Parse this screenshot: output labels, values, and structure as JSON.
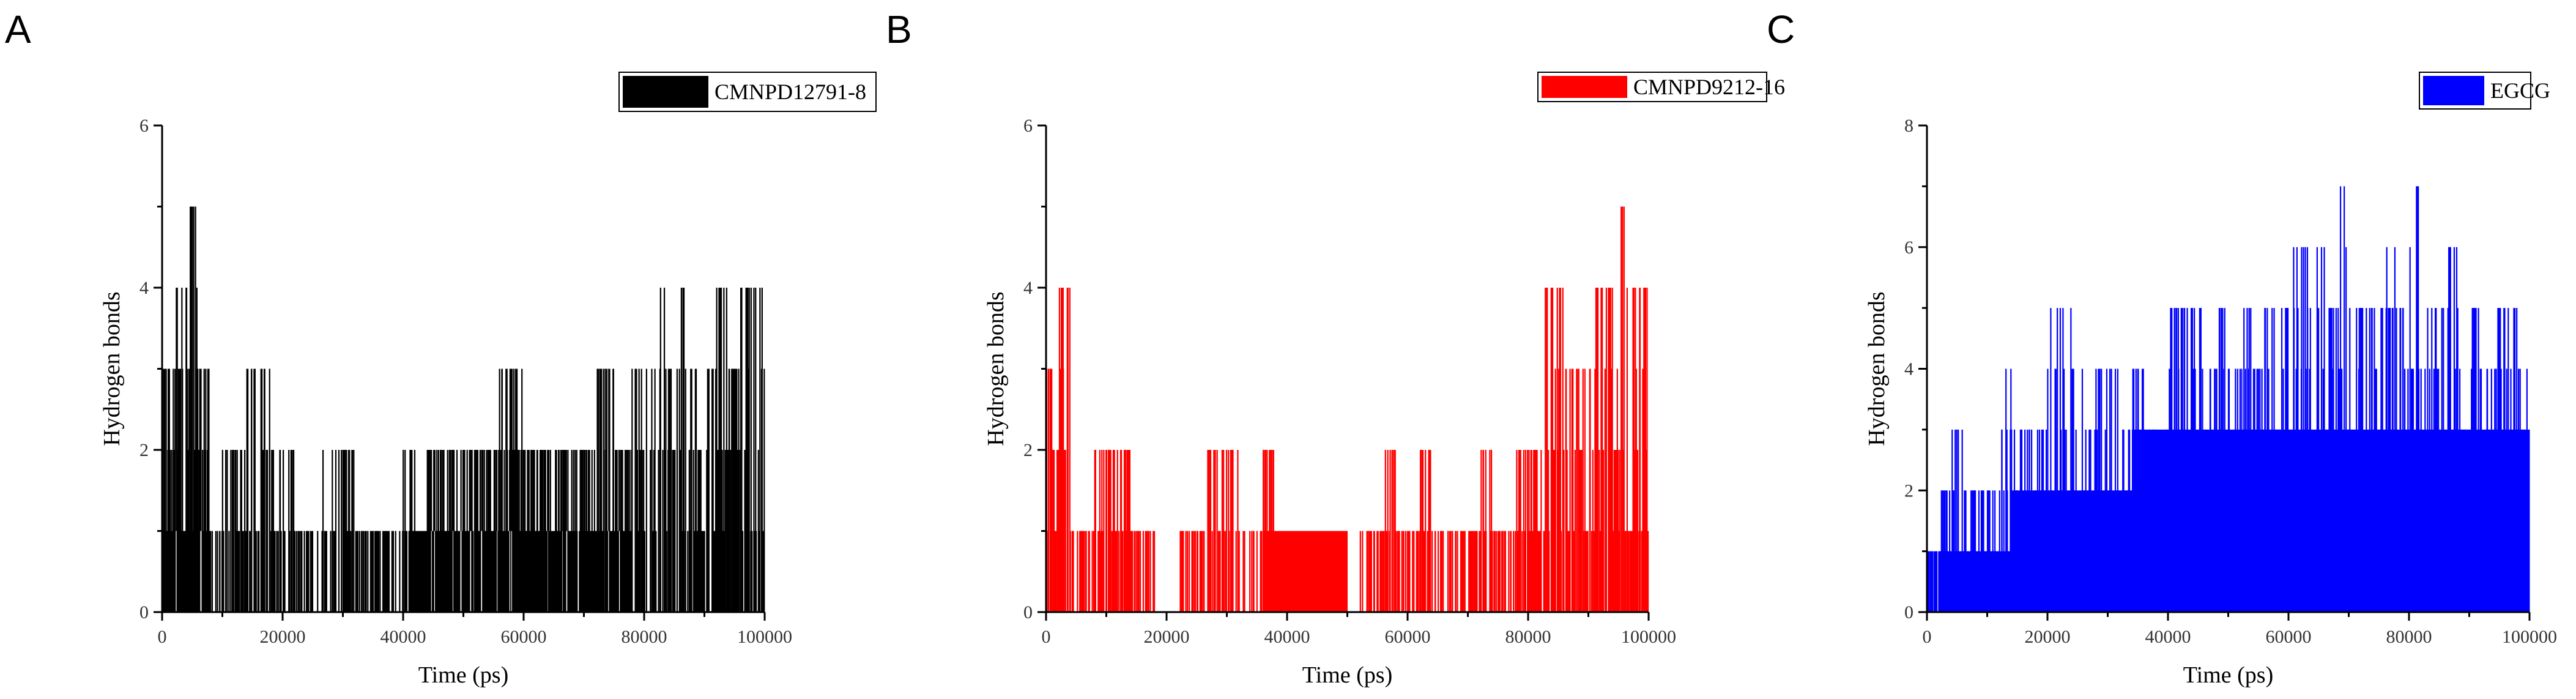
{
  "chart_data": [
    {
      "panel_label": "A",
      "type": "line",
      "title": "",
      "xlabel": "Time (ps)",
      "ylabel": "Hydrogen bonds",
      "xlim": [
        0,
        100000
      ],
      "ylim": [
        0,
        6
      ],
      "xticks": [
        "0",
        "20000",
        "40000",
        "60000",
        "80000",
        "100000"
      ],
      "yticks": [
        "0",
        "2",
        "4",
        "6"
      ],
      "grid": false,
      "legend_position": "top-right",
      "series": [
        {
          "name": "CMNPD12791-8",
          "color": "#000000",
          "description_bins_ps": 2000,
          "x": [
            0,
            2000,
            4000,
            6000,
            8000,
            10000,
            12000,
            14000,
            16000,
            18000,
            20000,
            22000,
            24000,
            26000,
            28000,
            30000,
            32000,
            34000,
            36000,
            38000,
            40000,
            42000,
            44000,
            46000,
            48000,
            50000,
            52000,
            54000,
            56000,
            58000,
            60000,
            62000,
            64000,
            66000,
            68000,
            70000,
            72000,
            74000,
            76000,
            78000,
            80000,
            82000,
            84000,
            86000,
            88000,
            90000,
            92000,
            94000,
            96000,
            98000
          ],
          "y_max": [
            3,
            4,
            5,
            3,
            1,
            2,
            2,
            3,
            3,
            2,
            2,
            1,
            1,
            2,
            2,
            2,
            1,
            1,
            1,
            1,
            2,
            1,
            2,
            2,
            2,
            2,
            2,
            2,
            3,
            3,
            2,
            2,
            2,
            2,
            2,
            2,
            3,
            3,
            2,
            3,
            3,
            4,
            3,
            4,
            3,
            3,
            4,
            3,
            4,
            4
          ],
          "y_min": [
            1,
            1,
            1,
            1,
            0,
            0,
            0,
            0,
            0,
            0,
            0,
            0,
            0,
            0,
            0,
            0,
            0,
            0,
            0,
            0,
            0,
            1,
            1,
            1,
            1,
            1,
            1,
            1,
            1,
            1,
            1,
            1,
            1,
            1,
            1,
            1,
            1,
            1,
            1,
            0,
            0,
            0,
            0,
            0,
            0,
            0,
            0,
            0,
            0,
            0
          ]
        }
      ]
    },
    {
      "panel_label": "B",
      "type": "line",
      "title": "",
      "xlabel": "Time (ps)",
      "ylabel": "Hydrogen bonds",
      "xlim": [
        0,
        100000
      ],
      "ylim": [
        0,
        6
      ],
      "xticks": [
        "0",
        "20000",
        "40000",
        "60000",
        "80000",
        "100000"
      ],
      "yticks": [
        "0",
        "2",
        "4",
        "6"
      ],
      "grid": false,
      "legend_position": "top-right",
      "series": [
        {
          "name": "CMNPD9212-16",
          "color": "#ff0000",
          "description_bins_ps": 2000,
          "x": [
            0,
            2000,
            4000,
            6000,
            8000,
            10000,
            12000,
            14000,
            16000,
            18000,
            20000,
            22000,
            24000,
            26000,
            28000,
            30000,
            32000,
            34000,
            36000,
            38000,
            40000,
            42000,
            44000,
            46000,
            48000,
            50000,
            52000,
            54000,
            56000,
            58000,
            60000,
            62000,
            64000,
            66000,
            68000,
            70000,
            72000,
            74000,
            76000,
            78000,
            80000,
            82000,
            84000,
            86000,
            88000,
            90000,
            92000,
            94000,
            96000,
            98000
          ],
          "y_max": [
            3,
            4,
            1,
            1,
            2,
            2,
            2,
            1,
            1,
            0,
            0,
            1,
            1,
            2,
            2,
            2,
            1,
            1,
            2,
            1,
            1,
            1,
            1,
            1,
            1,
            0,
            1,
            1,
            2,
            1,
            1,
            2,
            1,
            1,
            1,
            1,
            2,
            1,
            1,
            2,
            2,
            4,
            4,
            3,
            3,
            4,
            4,
            5,
            4,
            4
          ],
          "y_min": [
            0,
            0,
            0,
            0,
            0,
            0,
            0,
            0,
            0,
            0,
            0,
            0,
            0,
            0,
            0,
            0,
            0,
            0,
            1,
            1,
            1,
            1,
            1,
            1,
            1,
            0,
            0,
            0,
            0,
            0,
            0,
            0,
            0,
            0,
            0,
            0,
            0,
            0,
            0,
            0,
            1,
            0,
            0,
            0,
            0,
            0,
            0,
            0,
            0,
            0
          ]
        }
      ]
    },
    {
      "panel_label": "C",
      "type": "line",
      "title": "",
      "xlabel": "Time (ps)",
      "ylabel": "Hydrogen bonds",
      "xlim": [
        0,
        100000
      ],
      "ylim": [
        0,
        8
      ],
      "xticks": [
        "0",
        "20000",
        "40000",
        "60000",
        "80000",
        "100000"
      ],
      "yticks": [
        "0",
        "2",
        "4",
        "6",
        "8"
      ],
      "grid": false,
      "legend_position": "top-right",
      "series": [
        {
          "name": "EGCG",
          "color": "#0000ff",
          "description_bins_ps": 2000,
          "x": [
            0,
            2000,
            4000,
            6000,
            8000,
            10000,
            12000,
            14000,
            16000,
            18000,
            20000,
            22000,
            24000,
            26000,
            28000,
            30000,
            32000,
            34000,
            36000,
            38000,
            40000,
            42000,
            44000,
            46000,
            48000,
            50000,
            52000,
            54000,
            56000,
            58000,
            60000,
            62000,
            64000,
            66000,
            68000,
            70000,
            72000,
            74000,
            76000,
            78000,
            80000,
            82000,
            84000,
            86000,
            88000,
            90000,
            92000,
            94000,
            96000,
            98000
          ],
          "y_max": [
            1,
            2,
            3,
            2,
            2,
            2,
            4,
            3,
            3,
            3,
            5,
            5,
            4,
            3,
            4,
            4,
            3,
            4,
            3,
            3,
            5,
            5,
            5,
            4,
            5,
            4,
            5,
            4,
            5,
            5,
            6,
            6,
            6,
            5,
            7,
            5,
            5,
            5,
            6,
            5,
            7,
            5,
            5,
            6,
            5,
            5,
            4,
            5,
            5,
            4
          ],
          "y_min": [
            0,
            0,
            0,
            0,
            0,
            0,
            0,
            0,
            0,
            0,
            0,
            0,
            0,
            0,
            0,
            0,
            0,
            0,
            0,
            0,
            0,
            0,
            0,
            0,
            0,
            0,
            0,
            0,
            0,
            0,
            0,
            0,
            0,
            0,
            0,
            0,
            0,
            0,
            0,
            0,
            0,
            0,
            0,
            0,
            0,
            0,
            0,
            0,
            0,
            0
          ],
          "y_band_top": [
            0,
            1,
            1,
            1,
            1,
            1,
            1,
            2,
            2,
            2,
            2,
            2,
            2,
            2,
            2,
            2,
            2,
            3,
            3,
            3,
            3,
            3,
            3,
            3,
            3,
            3,
            3,
            3,
            3,
            3,
            3,
            3,
            3,
            3,
            3,
            3,
            3,
            3,
            3,
            3,
            3,
            3,
            3,
            3,
            3,
            3,
            3,
            3,
            3,
            3
          ]
        }
      ]
    }
  ]
}
